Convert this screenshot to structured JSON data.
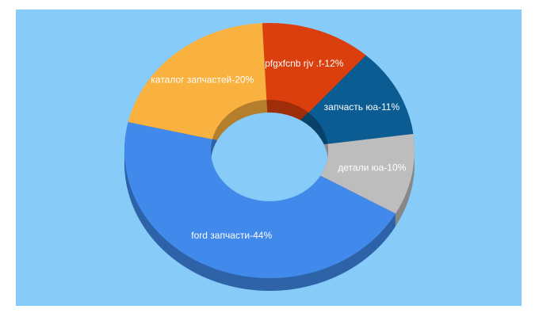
{
  "chart_data": {
    "type": "pie",
    "values": [
      12,
      11,
      10,
      44,
      20
    ],
    "value_labels": [
      "pfgxfcnb rjv .f-12%",
      "запчасть юа-11%",
      "детали юа-10%",
      "ford запчасти-44%",
      "каталог запчастей-20%"
    ],
    "colors": [
      "#dc3f0e",
      "#0b5c92",
      "#bdbdbd",
      "#4189ea",
      "#f9b13f"
    ]
  }
}
